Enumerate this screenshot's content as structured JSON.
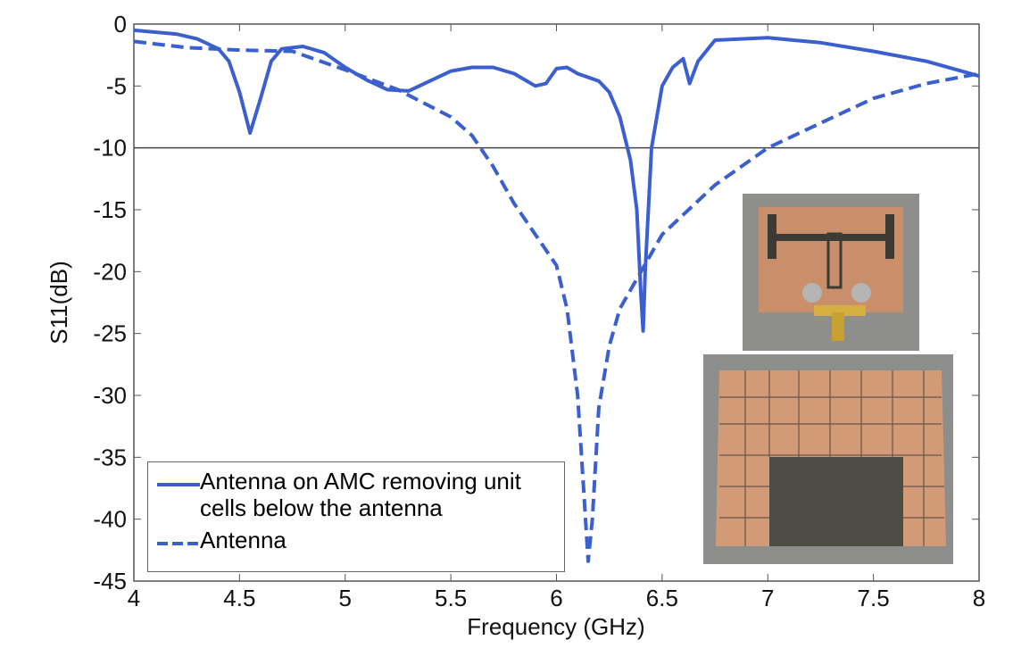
{
  "chart_data": {
    "type": "line",
    "xlabel": "Frequency (GHz)",
    "ylabel": "S11(dB)",
    "xlim": [
      4,
      8
    ],
    "ylim": [
      -45,
      0
    ],
    "xticks": [
      4,
      4.5,
      5,
      5.5,
      6,
      6.5,
      7,
      7.5,
      8
    ],
    "yticks": [
      0,
      -5,
      -10,
      -15,
      -20,
      -25,
      -30,
      -35,
      -40,
      -45
    ],
    "reference_line": -10,
    "legend": "lower left",
    "series": [
      {
        "name": "Antenna on AMC removing unit cells below the antenna",
        "color": "#3b5fcf",
        "style": "solid",
        "x": [
          4.0,
          4.2,
          4.3,
          4.4,
          4.45,
          4.5,
          4.55,
          4.6,
          4.65,
          4.7,
          4.8,
          4.9,
          5.0,
          5.1,
          5.2,
          5.3,
          5.4,
          5.5,
          5.6,
          5.7,
          5.8,
          5.9,
          5.95,
          6.0,
          6.05,
          6.1,
          6.2,
          6.25,
          6.3,
          6.35,
          6.38,
          6.4,
          6.41,
          6.42,
          6.45,
          6.5,
          6.55,
          6.6,
          6.63,
          6.67,
          6.75,
          7.0,
          7.25,
          7.5,
          7.75,
          8.0
        ],
        "values": [
          -0.5,
          -0.8,
          -1.2,
          -2,
          -3,
          -5.5,
          -8.8,
          -6,
          -3,
          -2,
          -1.8,
          -2.3,
          -3.5,
          -4.5,
          -5.3,
          -5.4,
          -4.6,
          -3.8,
          -3.5,
          -3.5,
          -4,
          -5,
          -4.8,
          -3.6,
          -3.5,
          -4,
          -4.6,
          -5.5,
          -7.5,
          -11,
          -15,
          -22,
          -24.8,
          -20,
          -10,
          -5,
          -3.5,
          -2.8,
          -4.8,
          -3,
          -1.3,
          -1.1,
          -1.5,
          -2.2,
          -3,
          -4.2
        ]
      },
      {
        "name": "Antenna",
        "color": "#3b5fcf",
        "style": "dashed",
        "x": [
          4.0,
          4.25,
          4.5,
          4.75,
          5.0,
          5.25,
          5.5,
          5.6,
          5.7,
          5.8,
          5.9,
          6.0,
          6.05,
          6.1,
          6.13,
          6.15,
          6.17,
          6.2,
          6.25,
          6.3,
          6.4,
          6.5,
          6.75,
          7.0,
          7.25,
          7.5,
          7.75,
          8.0
        ],
        "values": [
          -1.4,
          -1.9,
          -2.1,
          -2.2,
          -3.7,
          -5.3,
          -7.5,
          -9,
          -11.5,
          -14.5,
          -17,
          -19.5,
          -23,
          -30,
          -38,
          -43.4,
          -40,
          -31,
          -26,
          -23,
          -20,
          -17,
          -13,
          -10,
          -8,
          -6,
          -4.8,
          -4
        ]
      }
    ]
  }
}
